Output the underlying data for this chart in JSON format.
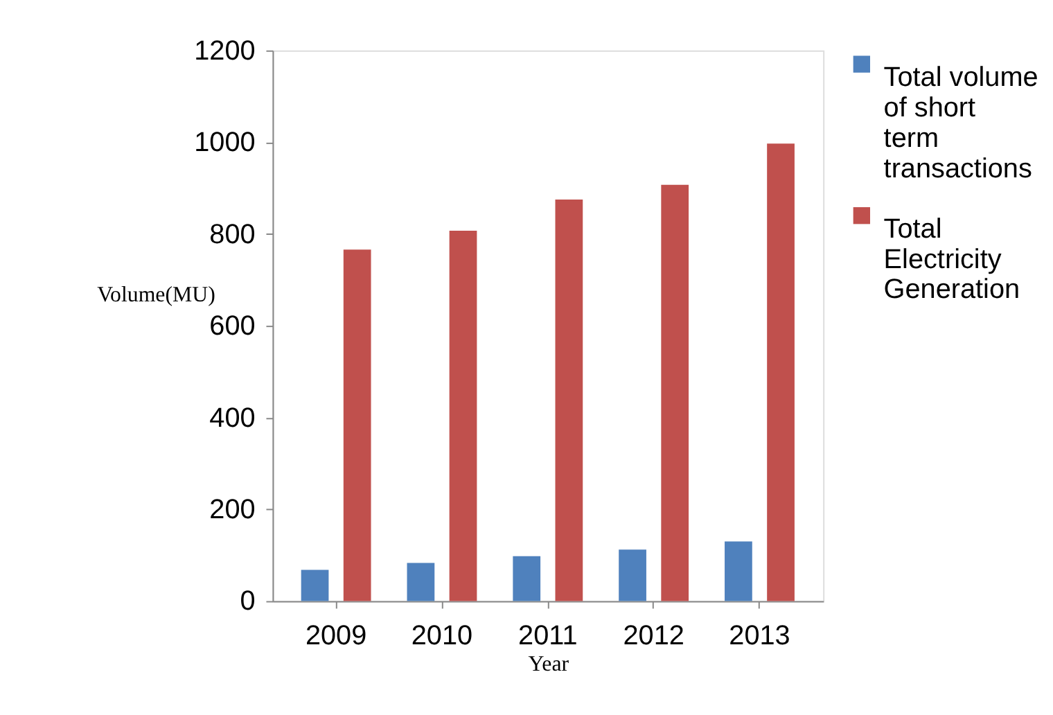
{
  "chart_data": {
    "type": "bar",
    "xlabel": "Year",
    "ylabel": "Volume(MU)",
    "categories": [
      "2009",
      "2010",
      "2011",
      "2012",
      "2013"
    ],
    "series": [
      {
        "name": "Total volume of short term transactions",
        "color": "#4f81bd",
        "values": [
          68,
          83,
          98,
          112,
          130
        ]
      },
      {
        "name": "Total Electricity Generation",
        "color": "#c0504d",
        "values": [
          766,
          807,
          875,
          907,
          997
        ]
      }
    ],
    "ylim": [
      0,
      1200
    ],
    "yticks": [
      0,
      200,
      400,
      600,
      800,
      1000,
      1200
    ],
    "grid": false,
    "legend": "right"
  }
}
